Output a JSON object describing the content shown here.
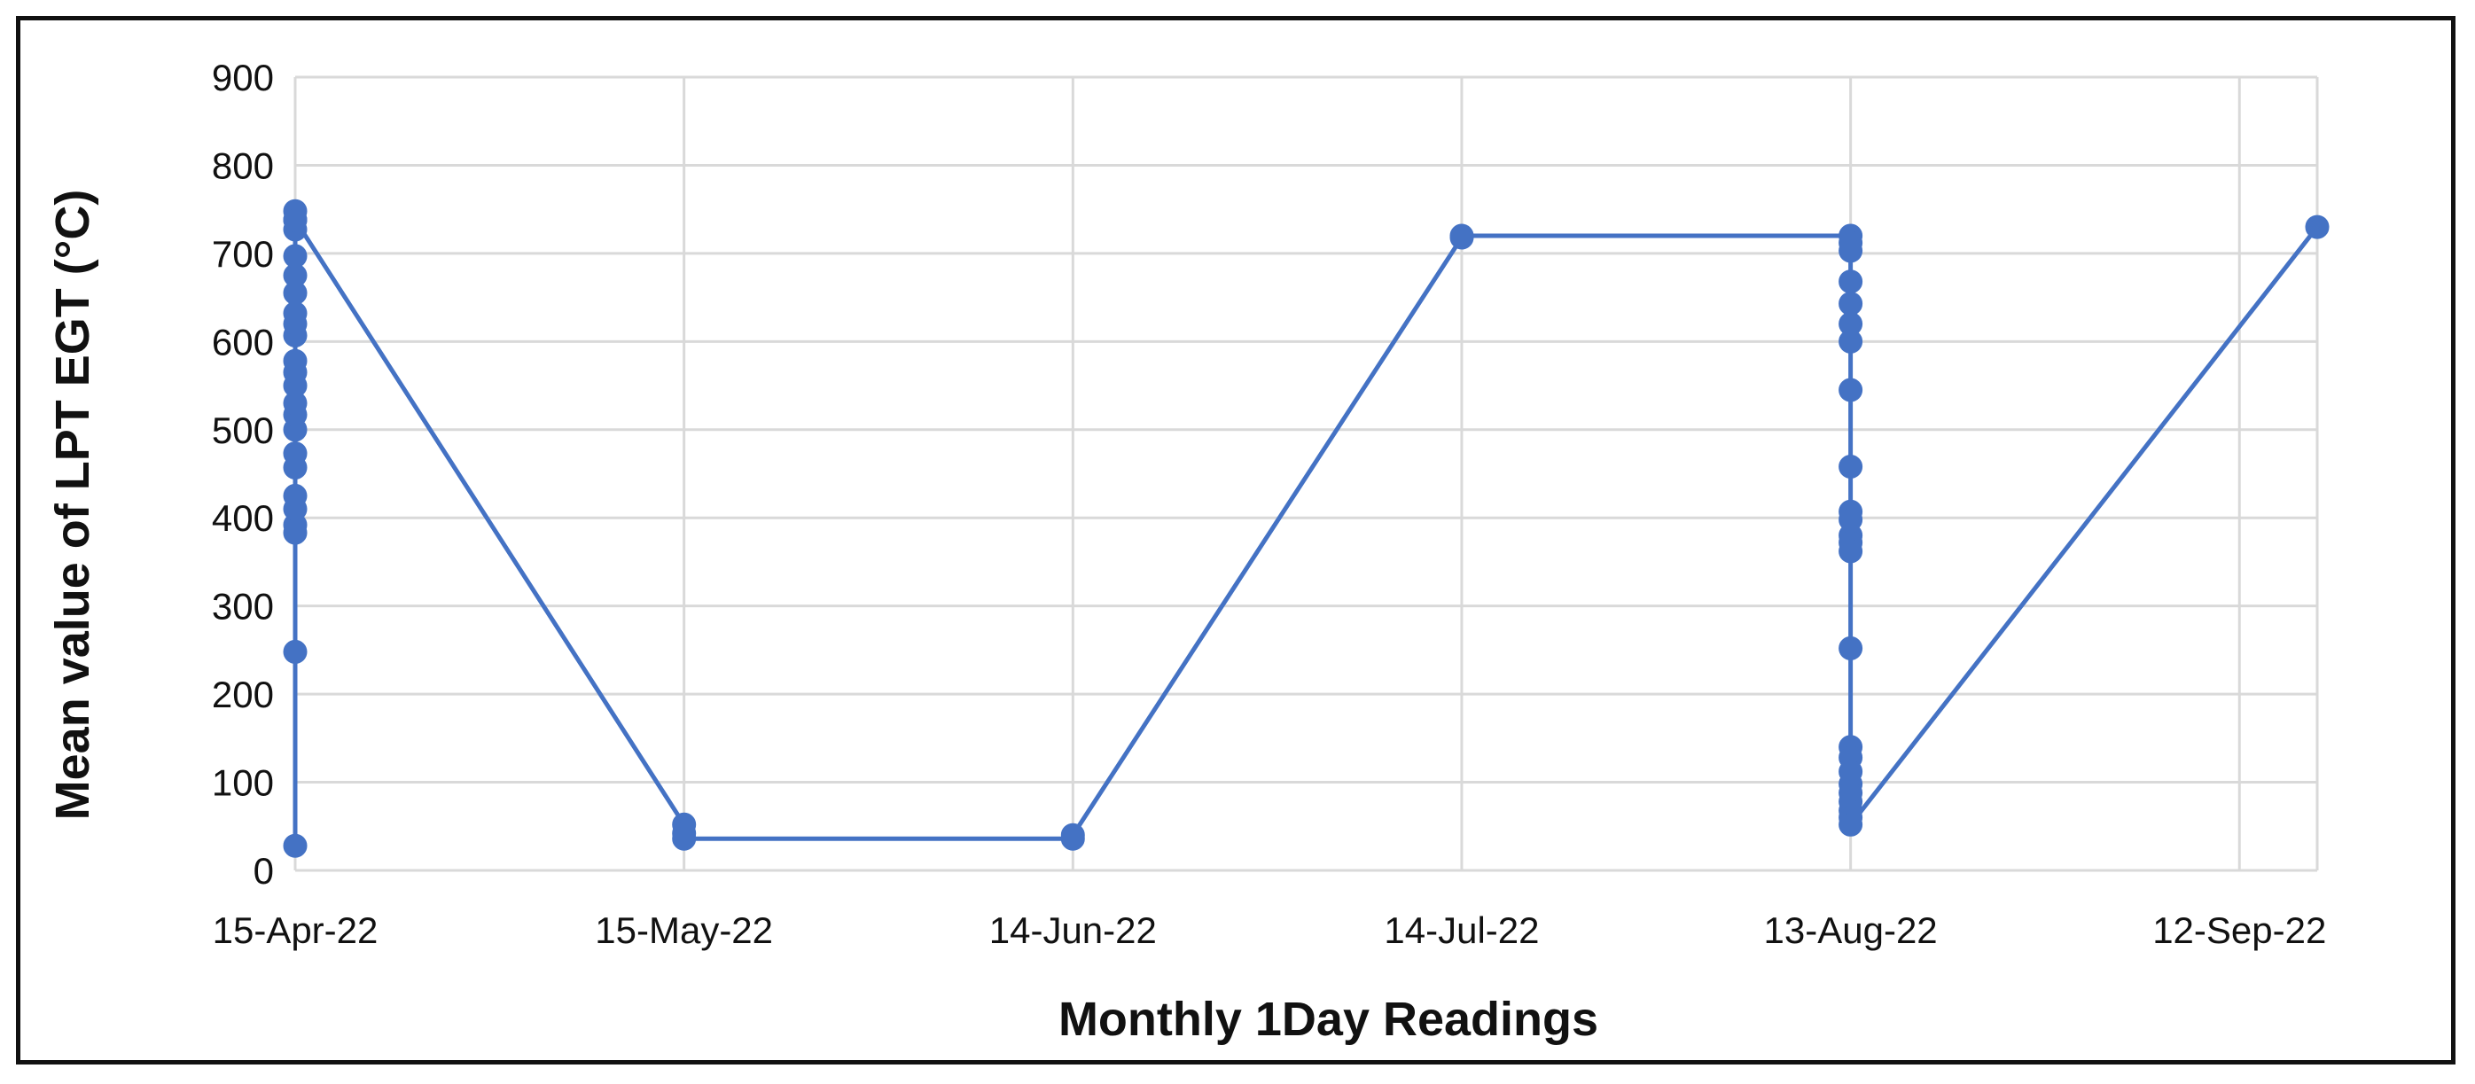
{
  "chart_data": {
    "type": "line",
    "title": "",
    "xlabel": "Monthly 1Day Readings",
    "ylabel": "Mean value of LPT EGT (°C)",
    "ylim": [
      0,
      900
    ],
    "y_ticks": [
      0,
      100,
      200,
      300,
      400,
      500,
      600,
      700,
      800,
      900
    ],
    "x_ticks": [
      "15-Apr-22",
      "15-May-22",
      "14-Jun-22",
      "14-Jul-22",
      "13-Aug-22",
      "12-Sep-22"
    ],
    "xlim": [
      "15-Apr-22",
      "18-Sep-22"
    ],
    "grid": true,
    "legend": "none",
    "colors": {
      "series": "#4472C4",
      "grid": "#D9D9D9",
      "axis": "#D9D9D9",
      "text": "#111111",
      "frame": "#111111"
    },
    "series": [
      {
        "points": [
          {
            "x": "15-Apr-22",
            "y": 28
          },
          {
            "x": "15-Apr-22",
            "y": 248
          },
          {
            "x": "15-Apr-22",
            "y": 383
          },
          {
            "x": "15-Apr-22",
            "y": 392
          },
          {
            "x": "15-Apr-22",
            "y": 410
          },
          {
            "x": "15-Apr-22",
            "y": 425
          },
          {
            "x": "15-Apr-22",
            "y": 457
          },
          {
            "x": "15-Apr-22",
            "y": 473
          },
          {
            "x": "15-Apr-22",
            "y": 500
          },
          {
            "x": "15-Apr-22",
            "y": 517
          },
          {
            "x": "15-Apr-22",
            "y": 530
          },
          {
            "x": "15-Apr-22",
            "y": 550
          },
          {
            "x": "15-Apr-22",
            "y": 565
          },
          {
            "x": "15-Apr-22",
            "y": 578
          },
          {
            "x": "15-Apr-22",
            "y": 607
          },
          {
            "x": "15-Apr-22",
            "y": 620
          },
          {
            "x": "15-Apr-22",
            "y": 632
          },
          {
            "x": "15-Apr-22",
            "y": 655
          },
          {
            "x": "15-Apr-22",
            "y": 675
          },
          {
            "x": "15-Apr-22",
            "y": 697
          },
          {
            "x": "15-Apr-22",
            "y": 727
          },
          {
            "x": "15-Apr-22",
            "y": 738
          },
          {
            "x": "15-Apr-22",
            "y": 748
          },
          {
            "x": "15-Apr-22",
            "y": 738
          },
          {
            "x": "15-May-22",
            "y": 52
          },
          {
            "x": "15-May-22",
            "y": 42
          },
          {
            "x": "15-May-22",
            "y": 36
          },
          {
            "x": "14-Jun-22",
            "y": 36
          },
          {
            "x": "14-Jun-22",
            "y": 40
          },
          {
            "x": "14-Jul-22",
            "y": 718
          },
          {
            "x": "14-Jul-22",
            "y": 720
          },
          {
            "x": "13-Aug-22",
            "y": 720
          },
          {
            "x": "13-Aug-22",
            "y": 712
          },
          {
            "x": "13-Aug-22",
            "y": 703
          },
          {
            "x": "13-Aug-22",
            "y": 668
          },
          {
            "x": "13-Aug-22",
            "y": 643
          },
          {
            "x": "13-Aug-22",
            "y": 620
          },
          {
            "x": "13-Aug-22",
            "y": 600
          },
          {
            "x": "13-Aug-22",
            "y": 545
          },
          {
            "x": "13-Aug-22",
            "y": 458
          },
          {
            "x": "13-Aug-22",
            "y": 407
          },
          {
            "x": "13-Aug-22",
            "y": 398
          },
          {
            "x": "13-Aug-22",
            "y": 380
          },
          {
            "x": "13-Aug-22",
            "y": 372
          },
          {
            "x": "13-Aug-22",
            "y": 362
          },
          {
            "x": "13-Aug-22",
            "y": 252
          },
          {
            "x": "13-Aug-22",
            "y": 140
          },
          {
            "x": "13-Aug-22",
            "y": 128
          },
          {
            "x": "13-Aug-22",
            "y": 112
          },
          {
            "x": "13-Aug-22",
            "y": 98
          },
          {
            "x": "13-Aug-22",
            "y": 88
          },
          {
            "x": "13-Aug-22",
            "y": 78
          },
          {
            "x": "13-Aug-22",
            "y": 68
          },
          {
            "x": "13-Aug-22",
            "y": 60
          },
          {
            "x": "13-Aug-22",
            "y": 52
          },
          {
            "x": "18-Sep-22",
            "y": 730
          }
        ]
      }
    ]
  }
}
